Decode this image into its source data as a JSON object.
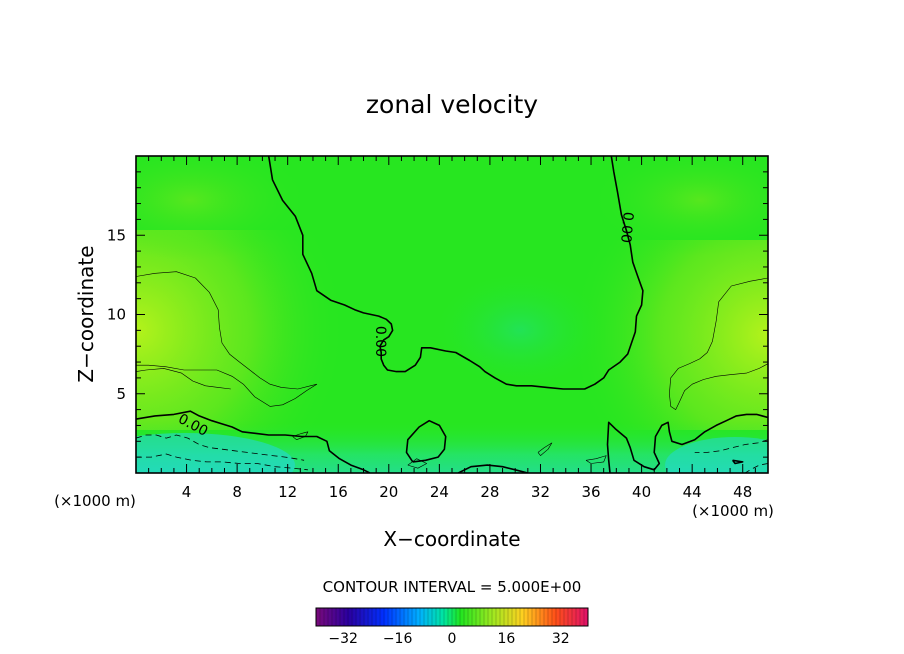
{
  "chart_data": {
    "type": "contour",
    "title": "zonal velocity",
    "xlabel": "X−coordinate",
    "ylabel": "Z−coordinate",
    "x_unit_label_left": "(×1000 m)",
    "x_unit_label_right": "(×1000 m)",
    "xlim": [
      0,
      50
    ],
    "ylim": [
      0,
      20
    ],
    "x_ticks": [
      4,
      8,
      12,
      16,
      20,
      24,
      28,
      32,
      36,
      40,
      44,
      48
    ],
    "y_ticks": [
      5,
      10,
      15
    ],
    "contour_interval_text": "CONTOUR INTERVAL = 5.000E+00",
    "contour_labels": [
      {
        "text": "0.00",
        "x": 4.5,
        "z": 3.0
      },
      {
        "text": "0.00",
        "x": 19.3,
        "z": 8.3
      },
      {
        "text": "0.00",
        "x": 38.8,
        "z": 15.5
      }
    ],
    "colorbar": {
      "min": -40,
      "max": 40,
      "ticks": [
        -32,
        -16,
        0,
        16,
        32
      ]
    },
    "zero_contour_paths": [
      [
        [
          10.5,
          20
        ],
        [
          10.8,
          18.5
        ],
        [
          11.6,
          17.2
        ],
        [
          12.6,
          16.2
        ],
        [
          13.2,
          15
        ],
        [
          13.2,
          13.8
        ],
        [
          13.9,
          12.6
        ],
        [
          14.3,
          11.5
        ],
        [
          15.4,
          10.9
        ],
        [
          16.5,
          10.6
        ],
        [
          17.3,
          10.3
        ],
        [
          18,
          10.1
        ],
        [
          18.6,
          10.0
        ],
        [
          19.2,
          9.9
        ],
        [
          19.8,
          9.7
        ],
        [
          20.2,
          9.4
        ],
        [
          20.3,
          9.0
        ],
        [
          20,
          8.6
        ],
        [
          19.6,
          8.4
        ],
        [
          19.3,
          8.0
        ],
        [
          19.4,
          7.6
        ],
        [
          19.4,
          7.2
        ],
        [
          19.6,
          6.8
        ],
        [
          19.9,
          6.5
        ],
        [
          20.6,
          6.4
        ],
        [
          21.3,
          6.4
        ],
        [
          22.1,
          6.8
        ],
        [
          22.5,
          7.3
        ],
        [
          22.6,
          7.9
        ],
        [
          23.3,
          7.9
        ],
        [
          24.5,
          7.7
        ],
        [
          25.3,
          7.6
        ],
        [
          26.4,
          7.1
        ],
        [
          27.2,
          6.7
        ],
        [
          27.6,
          6.4
        ],
        [
          28.4,
          6.0
        ],
        [
          29.3,
          5.6
        ],
        [
          30.1,
          5.5
        ],
        [
          31.3,
          5.5
        ],
        [
          32.5,
          5.4
        ],
        [
          33.8,
          5.3
        ],
        [
          35.5,
          5.3
        ],
        [
          36.3,
          5.6
        ],
        [
          37,
          6.0
        ],
        [
          37.4,
          6.5
        ],
        [
          38.3,
          7.0
        ],
        [
          38.9,
          7.5
        ],
        [
          39.2,
          8.2
        ],
        [
          39.5,
          8.9
        ],
        [
          39.6,
          9.9
        ],
        [
          40,
          10.6
        ],
        [
          40.1,
          11.5
        ],
        [
          39.7,
          12.4
        ],
        [
          39.3,
          13.3
        ],
        [
          39.1,
          14.4
        ],
        [
          38.8,
          15.3
        ],
        [
          38.4,
          16.3
        ],
        [
          38.1,
          17.7
        ],
        [
          37.8,
          19.0
        ],
        [
          37.6,
          20
        ]
      ],
      [
        [
          0,
          3.4
        ],
        [
          1.5,
          3.6
        ],
        [
          3,
          3.7
        ],
        [
          4.3,
          3.9
        ],
        [
          5,
          3.6
        ],
        [
          6,
          3.3
        ],
        [
          6.8,
          3.1
        ],
        [
          7.6,
          2.9
        ],
        [
          8.4,
          2.6
        ],
        [
          9.5,
          2.5
        ],
        [
          10.5,
          2.4
        ],
        [
          11.8,
          2.4
        ],
        [
          13.1,
          2.3
        ],
        [
          14.3,
          2.3
        ],
        [
          15.1,
          2.0
        ],
        [
          15.3,
          1.4
        ],
        [
          16.1,
          0.9
        ],
        [
          17,
          0.5
        ],
        [
          18,
          0.2
        ],
        [
          18.5,
          0
        ]
      ],
      [
        [
          21.9,
          0.7
        ],
        [
          21.4,
          1.3
        ],
        [
          21.5,
          2.1
        ],
        [
          22.4,
          2.9
        ],
        [
          23.2,
          3.3
        ],
        [
          24.0,
          3.0
        ],
        [
          24.5,
          2.3
        ],
        [
          24.4,
          1.5
        ],
        [
          23.9,
          1.0
        ],
        [
          22.9,
          0.8
        ],
        [
          21.9,
          0.7
        ]
      ],
      [
        [
          25.5,
          0
        ],
        [
          26.5,
          0.4
        ],
        [
          27.8,
          0.5
        ],
        [
          29.0,
          0.4
        ],
        [
          30.0,
          0.2
        ],
        [
          31,
          0
        ]
      ],
      [
        [
          37.5,
          0
        ],
        [
          37.4,
          0.8
        ],
        [
          37.3,
          1.8
        ],
        [
          37.4,
          3.2
        ],
        [
          37.9,
          2.8
        ],
        [
          38.8,
          2.2
        ],
        [
          39.1,
          1.6
        ],
        [
          39.4,
          0.8
        ],
        [
          40.2,
          0.4
        ],
        [
          41.0,
          0.2
        ],
        [
          41.4,
          0.6
        ],
        [
          41.0,
          1.3
        ],
        [
          41.1,
          2.3
        ],
        [
          41.6,
          3.0
        ],
        [
          42.1,
          3.2
        ],
        [
          42.2,
          2.6
        ],
        [
          42.4,
          2.0
        ],
        [
          43.2,
          1.8
        ],
        [
          44.2,
          2.1
        ],
        [
          45.0,
          2.6
        ],
        [
          45.9,
          3.0
        ],
        [
          46.7,
          3.3
        ],
        [
          47.5,
          3.6
        ],
        [
          48.3,
          3.7
        ],
        [
          49.1,
          3.7
        ],
        [
          50,
          3.5
        ]
      ],
      [
        [
          47.2,
          0.8
        ],
        [
          48,
          0.7
        ],
        [
          47.4,
          0.6
        ],
        [
          47.2,
          0.8
        ]
      ]
    ],
    "five_contour_paths": [
      [
        [
          0,
          12.4
        ],
        [
          1.5,
          12.6
        ],
        [
          3.2,
          12.7
        ],
        [
          4.7,
          12.3
        ],
        [
          5.8,
          11.4
        ],
        [
          6.5,
          10.3
        ],
        [
          6.6,
          9.2
        ],
        [
          6.8,
          8.2
        ],
        [
          7.4,
          7.5
        ],
        [
          8.2,
          7.0
        ],
        [
          9.0,
          6.5
        ],
        [
          9.8,
          6.0
        ],
        [
          10.6,
          5.6
        ],
        [
          11.5,
          5.4
        ],
        [
          12.8,
          5.3
        ],
        [
          13.8,
          5.5
        ],
        [
          14.3,
          5.6
        ],
        [
          13.5,
          5.2
        ],
        [
          12.6,
          4.7
        ],
        [
          11.6,
          4.3
        ],
        [
          10.6,
          4.2
        ],
        [
          9.4,
          4.8
        ],
        [
          8.5,
          5.6
        ],
        [
          7.6,
          6.1
        ],
        [
          6.4,
          6.5
        ],
        [
          5.2,
          6.5
        ],
        [
          3.8,
          6.5
        ],
        [
          2.4,
          6.7
        ],
        [
          1.0,
          6.8
        ],
        [
          0,
          6.8
        ]
      ],
      [
        [
          0,
          6.4
        ],
        [
          0.8,
          6.5
        ],
        [
          2.2,
          6.6
        ],
        [
          3.6,
          6.3
        ],
        [
          4.5,
          5.8
        ],
        [
          5.5,
          5.5
        ],
        [
          6.5,
          5.4
        ],
        [
          7.5,
          5.3
        ]
      ],
      [
        [
          50,
          12.3
        ],
        [
          48.6,
          12.1
        ],
        [
          47.1,
          11.8
        ],
        [
          46.1,
          10.8
        ],
        [
          45.9,
          9.6
        ],
        [
          45.6,
          8.3
        ],
        [
          45.2,
          7.6
        ],
        [
          44.6,
          7.2
        ],
        [
          43.8,
          6.9
        ],
        [
          42.9,
          6.6
        ],
        [
          42.3,
          6.0
        ],
        [
          42.2,
          5.0
        ],
        [
          42.3,
          4.2
        ],
        [
          42.7,
          4.0
        ],
        [
          43.0,
          4.5
        ],
        [
          43.4,
          5.2
        ],
        [
          44.0,
          5.6
        ],
        [
          44.9,
          5.9
        ],
        [
          45.9,
          6.1
        ],
        [
          47.0,
          6.2
        ],
        [
          48.3,
          6.3
        ],
        [
          49.3,
          6.6
        ],
        [
          50,
          6.9
        ]
      ],
      [
        [
          12.4,
          2.3
        ],
        [
          13.1,
          2.5
        ],
        [
          13.6,
          2.6
        ],
        [
          13.4,
          2.3
        ],
        [
          12.7,
          2.1
        ],
        [
          12.4,
          2.3
        ]
      ],
      [
        [
          31.8,
          1.3
        ],
        [
          32.3,
          1.6
        ],
        [
          32.9,
          1.9
        ],
        [
          32.6,
          1.5
        ],
        [
          32.0,
          1.1
        ],
        [
          31.8,
          1.3
        ]
      ],
      [
        [
          35.6,
          0.8
        ],
        [
          36.4,
          0.9
        ],
        [
          37.2,
          1.1
        ],
        [
          37.0,
          0.7
        ],
        [
          36.0,
          0.6
        ],
        [
          35.6,
          0.8
        ]
      ],
      [
        [
          21.5,
          0.5
        ],
        [
          22.2,
          0.9
        ],
        [
          23.0,
          0.6
        ],
        [
          22.3,
          0.3
        ],
        [
          21.5,
          0.5
        ]
      ]
    ],
    "neg_contour_paths": [
      [
        [
          0,
          2.2
        ],
        [
          0.8,
          2.4
        ],
        [
          1.6,
          2.4
        ],
        [
          2.4,
          2.2
        ],
        [
          3.2,
          2.4
        ],
        [
          4.1,
          2.2
        ],
        [
          5,
          1.8
        ],
        [
          5.8,
          1.6
        ],
        [
          6.8,
          1.5
        ],
        [
          7.8,
          1.4
        ],
        [
          8.8,
          1.3
        ],
        [
          9.8,
          1.2
        ],
        [
          10.8,
          1.1
        ],
        [
          11.8,
          1.0
        ],
        [
          12.6,
          0.9
        ],
        [
          13.3,
          0.8
        ]
      ],
      [
        [
          0,
          1.0
        ],
        [
          1.2,
          1.0
        ],
        [
          2.4,
          1.2
        ],
        [
          3.2,
          1.0
        ],
        [
          4.4,
          0.8
        ],
        [
          5.6,
          0.7
        ],
        [
          6.8,
          0.7
        ],
        [
          8.2,
          0.6
        ],
        [
          9.6,
          0.6
        ],
        [
          11,
          0.4
        ],
        [
          12.4,
          0.3
        ],
        [
          13.6,
          0.2
        ]
      ],
      [
        [
          50,
          2.1
        ],
        [
          49.2,
          1.9
        ],
        [
          48.2,
          1.8
        ],
        [
          47.2,
          1.6
        ],
        [
          46.2,
          1.4
        ],
        [
          45.2,
          1.3
        ],
        [
          44.2,
          1.3
        ]
      ],
      [
        [
          50,
          0.6
        ],
        [
          49.3,
          0.5
        ],
        [
          48.6,
          0.2
        ],
        [
          48.2,
          0
        ]
      ]
    ],
    "field_colors": {
      "base": "#27e620",
      "positive_high": "#b4f21b",
      "positive_mid": "#7ee81d",
      "negative_mid": "#22e1b2",
      "negative_low": "#22d7e0"
    }
  }
}
